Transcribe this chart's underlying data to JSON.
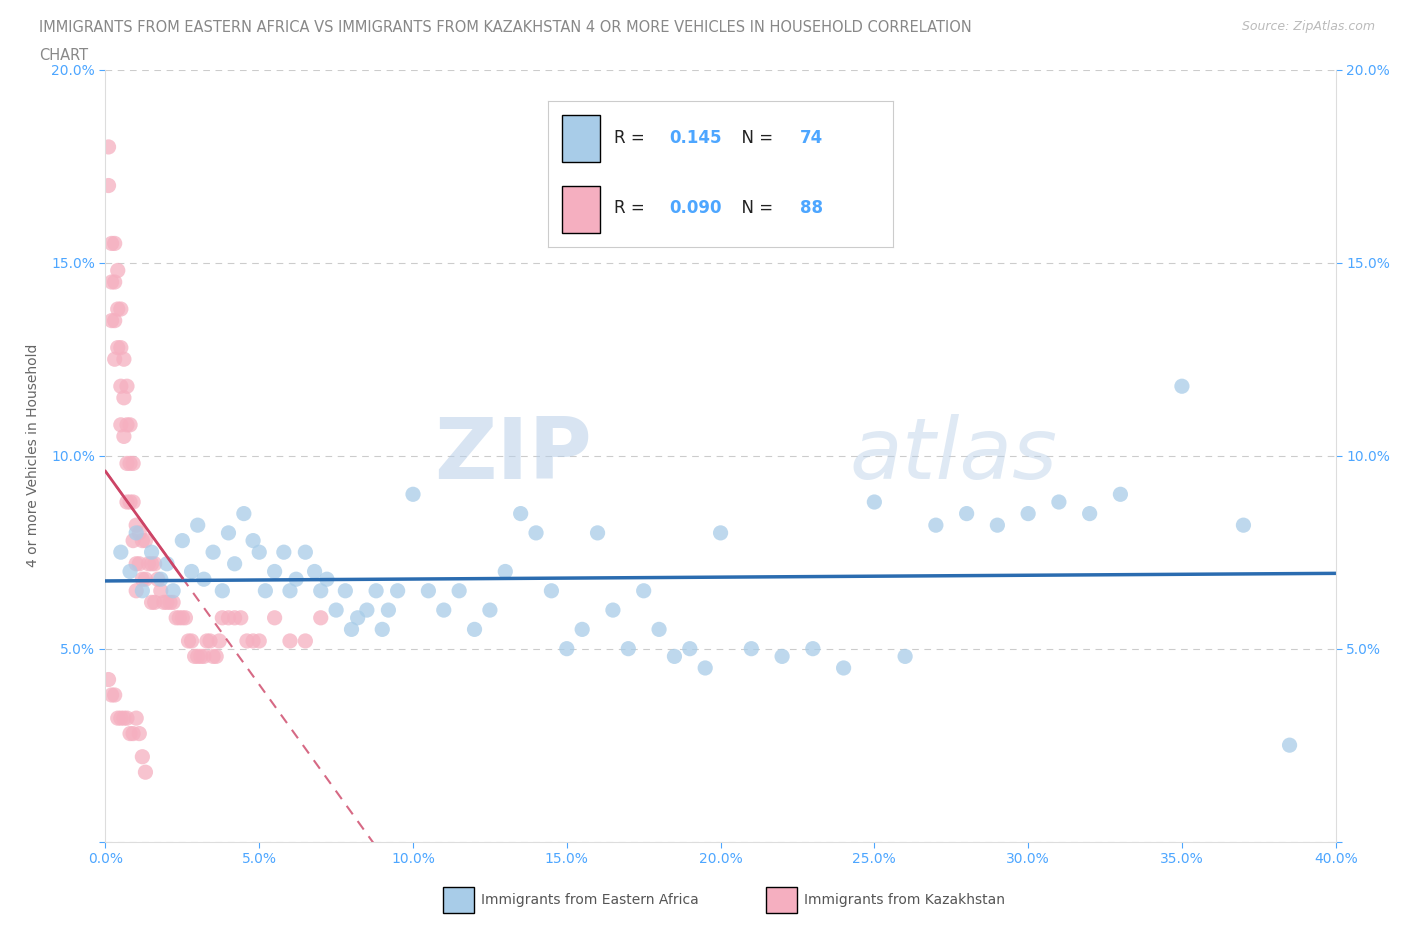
{
  "title_line1": "IMMIGRANTS FROM EASTERN AFRICA VS IMMIGRANTS FROM KAZAKHSTAN 4 OR MORE VEHICLES IN HOUSEHOLD CORRELATION",
  "title_line2": "CHART",
  "source": "Source: ZipAtlas.com",
  "ylabel": "4 or more Vehicles in Household",
  "xlim": [
    0.0,
    0.4
  ],
  "ylim": [
    0.0,
    0.2
  ],
  "xtick_positions": [
    0.0,
    0.05,
    0.1,
    0.15,
    0.2,
    0.25,
    0.3,
    0.35,
    0.4
  ],
  "ytick_positions": [
    0.0,
    0.05,
    0.1,
    0.15,
    0.2
  ],
  "xtick_labels": [
    "0.0%",
    "5.0%",
    "10.0%",
    "15.0%",
    "20.0%",
    "25.0%",
    "30.0%",
    "35.0%",
    "40.0%"
  ],
  "ytick_labels": [
    "",
    "5.0%",
    "10.0%",
    "15.0%",
    "20.0%"
  ],
  "blue_color": "#a8cce8",
  "pink_color": "#f5afc0",
  "blue_line_color": "#2b6cb0",
  "pink_line_color": "#cc4466",
  "tick_color": "#4da6ff",
  "R_blue": "0.145",
  "N_blue": "74",
  "R_pink": "0.090",
  "N_pink": "88",
  "watermark_zip": "ZIP",
  "watermark_atlas": "atlas",
  "legend_label_blue": "Immigrants from Eastern Africa",
  "legend_label_pink": "Immigrants from Kazakhstan",
  "blue_scatter_x": [
    0.005,
    0.008,
    0.01,
    0.012,
    0.015,
    0.018,
    0.02,
    0.022,
    0.025,
    0.028,
    0.03,
    0.032,
    0.035,
    0.038,
    0.04,
    0.042,
    0.045,
    0.048,
    0.05,
    0.052,
    0.055,
    0.058,
    0.06,
    0.062,
    0.065,
    0.068,
    0.07,
    0.072,
    0.075,
    0.078,
    0.08,
    0.082,
    0.085,
    0.088,
    0.09,
    0.092,
    0.095,
    0.1,
    0.105,
    0.11,
    0.115,
    0.12,
    0.125,
    0.13,
    0.135,
    0.14,
    0.145,
    0.15,
    0.155,
    0.16,
    0.165,
    0.17,
    0.175,
    0.18,
    0.185,
    0.19,
    0.195,
    0.2,
    0.21,
    0.22,
    0.23,
    0.24,
    0.25,
    0.26,
    0.27,
    0.28,
    0.29,
    0.3,
    0.31,
    0.32,
    0.33,
    0.35,
    0.37,
    0.385
  ],
  "blue_scatter_y": [
    0.075,
    0.07,
    0.08,
    0.065,
    0.075,
    0.068,
    0.072,
    0.065,
    0.078,
    0.07,
    0.082,
    0.068,
    0.075,
    0.065,
    0.08,
    0.072,
    0.085,
    0.078,
    0.075,
    0.065,
    0.07,
    0.075,
    0.065,
    0.068,
    0.075,
    0.07,
    0.065,
    0.068,
    0.06,
    0.065,
    0.055,
    0.058,
    0.06,
    0.065,
    0.055,
    0.06,
    0.065,
    0.09,
    0.065,
    0.06,
    0.065,
    0.055,
    0.06,
    0.07,
    0.085,
    0.08,
    0.065,
    0.05,
    0.055,
    0.08,
    0.06,
    0.05,
    0.065,
    0.055,
    0.048,
    0.05,
    0.045,
    0.08,
    0.05,
    0.048,
    0.05,
    0.045,
    0.088,
    0.048,
    0.082,
    0.085,
    0.082,
    0.085,
    0.088,
    0.085,
    0.09,
    0.118,
    0.082,
    0.025
  ],
  "pink_scatter_x": [
    0.001,
    0.001,
    0.002,
    0.002,
    0.002,
    0.003,
    0.003,
    0.003,
    0.003,
    0.004,
    0.004,
    0.004,
    0.005,
    0.005,
    0.005,
    0.005,
    0.006,
    0.006,
    0.006,
    0.007,
    0.007,
    0.007,
    0.007,
    0.008,
    0.008,
    0.008,
    0.009,
    0.009,
    0.009,
    0.01,
    0.01,
    0.01,
    0.011,
    0.011,
    0.012,
    0.012,
    0.013,
    0.013,
    0.014,
    0.015,
    0.015,
    0.016,
    0.016,
    0.017,
    0.018,
    0.019,
    0.02,
    0.021,
    0.022,
    0.023,
    0.024,
    0.025,
    0.026,
    0.027,
    0.028,
    0.029,
    0.03,
    0.031,
    0.032,
    0.033,
    0.034,
    0.035,
    0.036,
    0.037,
    0.038,
    0.04,
    0.042,
    0.044,
    0.046,
    0.048,
    0.05,
    0.055,
    0.06,
    0.065,
    0.07,
    0.001,
    0.002,
    0.003,
    0.004,
    0.005,
    0.006,
    0.007,
    0.008,
    0.009,
    0.01,
    0.011,
    0.012,
    0.013
  ],
  "pink_scatter_y": [
    0.18,
    0.17,
    0.155,
    0.145,
    0.135,
    0.155,
    0.145,
    0.135,
    0.125,
    0.148,
    0.138,
    0.128,
    0.138,
    0.128,
    0.118,
    0.108,
    0.125,
    0.115,
    0.105,
    0.118,
    0.108,
    0.098,
    0.088,
    0.108,
    0.098,
    0.088,
    0.098,
    0.088,
    0.078,
    0.082,
    0.072,
    0.065,
    0.08,
    0.072,
    0.078,
    0.068,
    0.078,
    0.068,
    0.072,
    0.072,
    0.062,
    0.072,
    0.062,
    0.068,
    0.065,
    0.062,
    0.062,
    0.062,
    0.062,
    0.058,
    0.058,
    0.058,
    0.058,
    0.052,
    0.052,
    0.048,
    0.048,
    0.048,
    0.048,
    0.052,
    0.052,
    0.048,
    0.048,
    0.052,
    0.058,
    0.058,
    0.058,
    0.058,
    0.052,
    0.052,
    0.052,
    0.058,
    0.052,
    0.052,
    0.058,
    0.042,
    0.038,
    0.038,
    0.032,
    0.032,
    0.032,
    0.032,
    0.028,
    0.028,
    0.032,
    0.028,
    0.022,
    0.018
  ]
}
